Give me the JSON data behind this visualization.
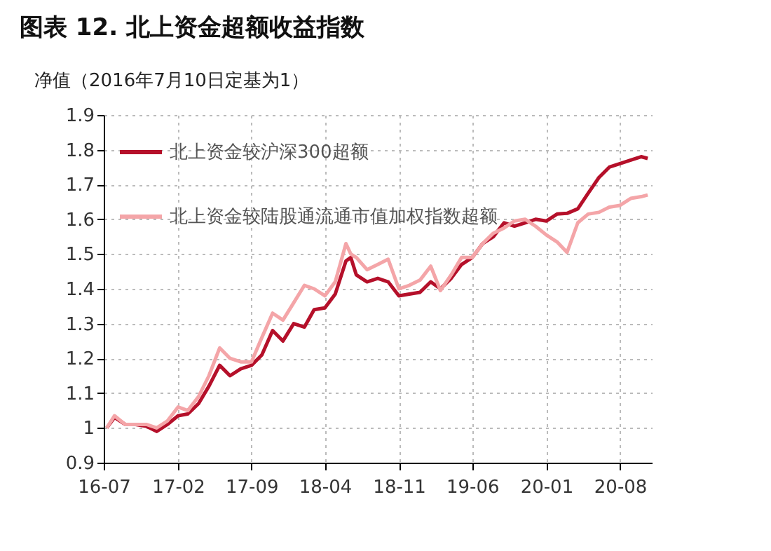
{
  "chart_data": {
    "type": "line",
    "title": "图表 12. 北上资金超额收益指数",
    "ylabel": "净值（2016年7月10日定基为1）",
    "x": [
      "2016-07-10",
      "2016-08",
      "2016-09",
      "2016-10",
      "2016-11",
      "2016-12",
      "2017-01",
      "2017-02",
      "2017-03",
      "2017-04",
      "2017-05",
      "2017-06",
      "2017-07",
      "2017-08",
      "2017-09",
      "2017-10",
      "2017-11",
      "2017-12",
      "2018-01",
      "2018-02",
      "2018-03",
      "2018-04",
      "2018-05",
      "2018-06",
      "2018-06-15",
      "2018-07",
      "2018-08",
      "2018-09",
      "2018-10",
      "2018-11",
      "2018-12",
      "2019-01",
      "2019-02",
      "2019-03",
      "2019-04",
      "2019-05",
      "2019-06",
      "2019-07",
      "2019-08",
      "2019-09",
      "2019-10",
      "2019-11",
      "2019-12",
      "2020-01",
      "2020-02",
      "2020-03",
      "2020-04",
      "2020-05",
      "2020-06",
      "2020-07",
      "2020-08",
      "2020-09",
      "2020-10",
      "2020-10-20"
    ],
    "series": [
      {
        "name": "北上资金较沪深300超额",
        "color": "#b5102a",
        "values": [
          1.0,
          1.03,
          1.01,
          1.01,
          1.005,
          0.99,
          1.01,
          1.035,
          1.04,
          1.07,
          1.12,
          1.18,
          1.15,
          1.17,
          1.18,
          1.21,
          1.28,
          1.25,
          1.3,
          1.29,
          1.34,
          1.345,
          1.385,
          1.48,
          1.49,
          1.44,
          1.42,
          1.43,
          1.42,
          1.38,
          1.385,
          1.39,
          1.42,
          1.4,
          1.43,
          1.47,
          1.49,
          1.53,
          1.55,
          1.59,
          1.58,
          1.59,
          1.6,
          1.595,
          1.615,
          1.617,
          1.63,
          1.675,
          1.72,
          1.75,
          1.76,
          1.77,
          1.78,
          1.775
        ]
      },
      {
        "name": "北上资金较陆股通流通市值加权指数超额",
        "color": "#f4a5a8",
        "values": [
          1.0,
          1.035,
          1.01,
          1.01,
          1.01,
          1.0,
          1.02,
          1.06,
          1.05,
          1.09,
          1.15,
          1.23,
          1.2,
          1.19,
          1.19,
          1.26,
          1.33,
          1.31,
          1.36,
          1.41,
          1.4,
          1.38,
          1.42,
          1.53,
          1.5,
          1.49,
          1.455,
          1.47,
          1.485,
          1.4,
          1.41,
          1.425,
          1.465,
          1.395,
          1.44,
          1.49,
          1.49,
          1.53,
          1.56,
          1.575,
          1.595,
          1.6,
          1.58,
          1.555,
          1.535,
          1.505,
          1.59,
          1.615,
          1.62,
          1.635,
          1.64,
          1.66,
          1.665,
          1.67
        ]
      }
    ],
    "xlim": [
      "2016-07-01",
      "2020-11-01"
    ],
    "xticks": [
      {
        "value": "2016-07",
        "label": "16-07"
      },
      {
        "value": "2017-02",
        "label": "17-02"
      },
      {
        "value": "2017-09",
        "label": "17-09"
      },
      {
        "value": "2018-04",
        "label": "18-04"
      },
      {
        "value": "2018-11",
        "label": "18-11"
      },
      {
        "value": "2019-06",
        "label": "19-06"
      },
      {
        "value": "2020-01",
        "label": "20-01"
      },
      {
        "value": "2020-08",
        "label": "20-08"
      }
    ],
    "ylim": [
      0.9,
      1.9
    ],
    "yticks": [
      {
        "value": 0.9,
        "label": "0.9"
      },
      {
        "value": 1,
        "label": "1"
      },
      {
        "value": 1.1,
        "label": "1.1"
      },
      {
        "value": 1.2,
        "label": "1.2"
      },
      {
        "value": 1.3,
        "label": "1.3"
      },
      {
        "value": 1.4,
        "label": "1.4"
      },
      {
        "value": 1.5,
        "label": "1.5"
      },
      {
        "value": 1.6,
        "label": "1.6"
      },
      {
        "value": 1.7,
        "label": "1.7"
      },
      {
        "value": 1.8,
        "label": "1.8"
      },
      {
        "value": 1.9,
        "label": "1.9"
      }
    ],
    "grid": true,
    "legend": "top left",
    "line_style": "solid",
    "marker": "none"
  }
}
